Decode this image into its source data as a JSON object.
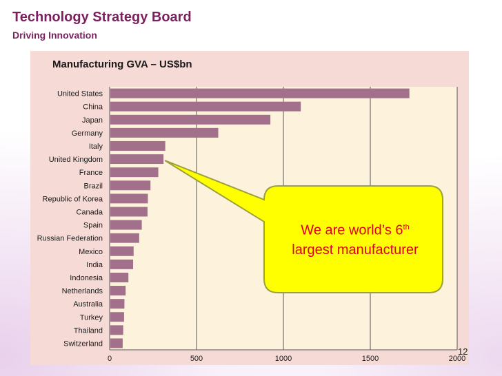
{
  "slide": {
    "title": "Technology Strategy Board",
    "subtitle": "Driving Innovation",
    "page_number": "12"
  },
  "callout": {
    "line1": "We are world’s 6",
    "superscript": "th",
    "line2": "largest manufacturer",
    "fill_color": "#ffff00",
    "border_color": "#9ba03a",
    "text_color": "#e0001b"
  },
  "colors": {
    "bar": "#a2708a",
    "plot_background": "#fdf2dc",
    "panel_background": "#f6dad6",
    "title": "#7b1f5f"
  },
  "chart_data": {
    "type": "bar",
    "orientation": "horizontal",
    "title": "Manufacturing GVA – US$bn",
    "xlabel": "",
    "ylabel": "",
    "xlim": [
      0,
      2000
    ],
    "xticks": [
      0,
      500,
      1000,
      1500,
      2000
    ],
    "grid": true,
    "categories": [
      "United States",
      "China",
      "Japan",
      "Germany",
      "Italy",
      "United Kingdom",
      "France",
      "Brazil",
      "Republic of Korea",
      "Canada",
      "Spain",
      "Russian Federation",
      "Mexico",
      "India",
      "Indonesia",
      "Netherlands",
      "Australia",
      "Turkey",
      "Thailand",
      "Switzerland"
    ],
    "values": [
      1725,
      1100,
      925,
      625,
      320,
      310,
      280,
      235,
      220,
      218,
      185,
      170,
      138,
      135,
      108,
      92,
      85,
      83,
      78,
      75
    ]
  }
}
